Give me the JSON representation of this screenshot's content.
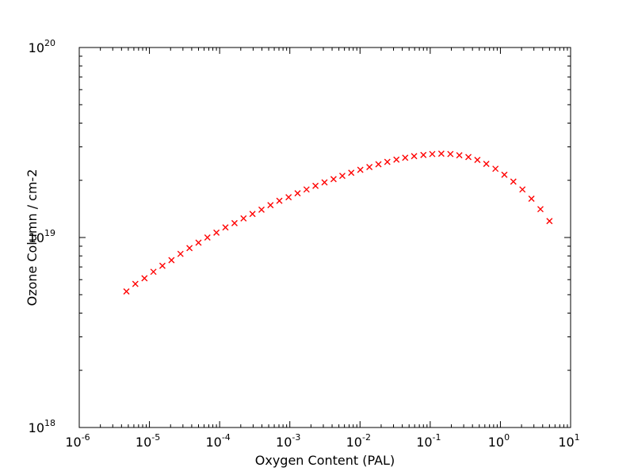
{
  "chart_data": {
    "type": "scatter",
    "title": "",
    "xlabel": "Oxygen Content (PAL)",
    "ylabel": "Ozone Column / cm-2",
    "xscale": "log",
    "yscale": "log",
    "xlim": [
      1e-06,
      10
    ],
    "ylim": [
      1e+18,
      1e+20
    ],
    "grid": false,
    "legend": "none",
    "x_ticks": [
      {
        "base": "10",
        "exp": "-6"
      },
      {
        "base": "10",
        "exp": "-5"
      },
      {
        "base": "10",
        "exp": "-4"
      },
      {
        "base": "10",
        "exp": "-3"
      },
      {
        "base": "10",
        "exp": "-2"
      },
      {
        "base": "10",
        "exp": "-1"
      },
      {
        "base": "10",
        "exp": "0"
      },
      {
        "base": "10",
        "exp": "1"
      }
    ],
    "y_ticks": [
      {
        "base": "10",
        "exp": "18"
      },
      {
        "base": "10",
        "exp": "19"
      },
      {
        "base": "10",
        "exp": "20"
      }
    ],
    "series": [
      {
        "name": "ozone column",
        "marker": "x",
        "color": "#ff0000",
        "x": [
          4.7e-06,
          6.3e-06,
          8.5e-06,
          1.14e-05,
          1.53e-05,
          2.06e-05,
          2.77e-05,
          3.72e-05,
          5e-05,
          6.7e-05,
          9e-05,
          0.000121,
          0.000163,
          0.000219,
          0.000294,
          0.000395,
          0.00053,
          0.00071,
          0.00096,
          0.00129,
          0.00173,
          0.00232,
          0.00312,
          0.0042,
          0.0056,
          0.0075,
          0.0101,
          0.0136,
          0.0183,
          0.0245,
          0.033,
          0.044,
          0.059,
          0.08,
          0.107,
          0.144,
          0.194,
          0.26,
          0.35,
          0.47,
          0.63,
          0.85,
          1.14,
          1.53,
          2.06,
          2.77,
          3.72,
          5.0
        ],
        "y": [
          5.2e+18,
          5.7e+18,
          6.1e+18,
          6.6e+18,
          7.1e+18,
          7.6e+18,
          8.2e+18,
          8.8e+18,
          9.4e+18,
          1e+19,
          1.06e+19,
          1.13e+19,
          1.19e+19,
          1.26e+19,
          1.33e+19,
          1.4e+19,
          1.48e+19,
          1.56e+19,
          1.63e+19,
          1.71e+19,
          1.79e+19,
          1.87e+19,
          1.95e+19,
          2.03e+19,
          2.11e+19,
          2.19e+19,
          2.27e+19,
          2.35e+19,
          2.43e+19,
          2.5e+19,
          2.57e+19,
          2.63e+19,
          2.68e+19,
          2.72e+19,
          2.75e+19,
          2.76e+19,
          2.75e+19,
          2.71e+19,
          2.65e+19,
          2.56e+19,
          2.44e+19,
          2.3e+19,
          2.14e+19,
          1.97e+19,
          1.79e+19,
          1.6e+19,
          1.41e+19,
          1.22e+19
        ]
      }
    ]
  }
}
